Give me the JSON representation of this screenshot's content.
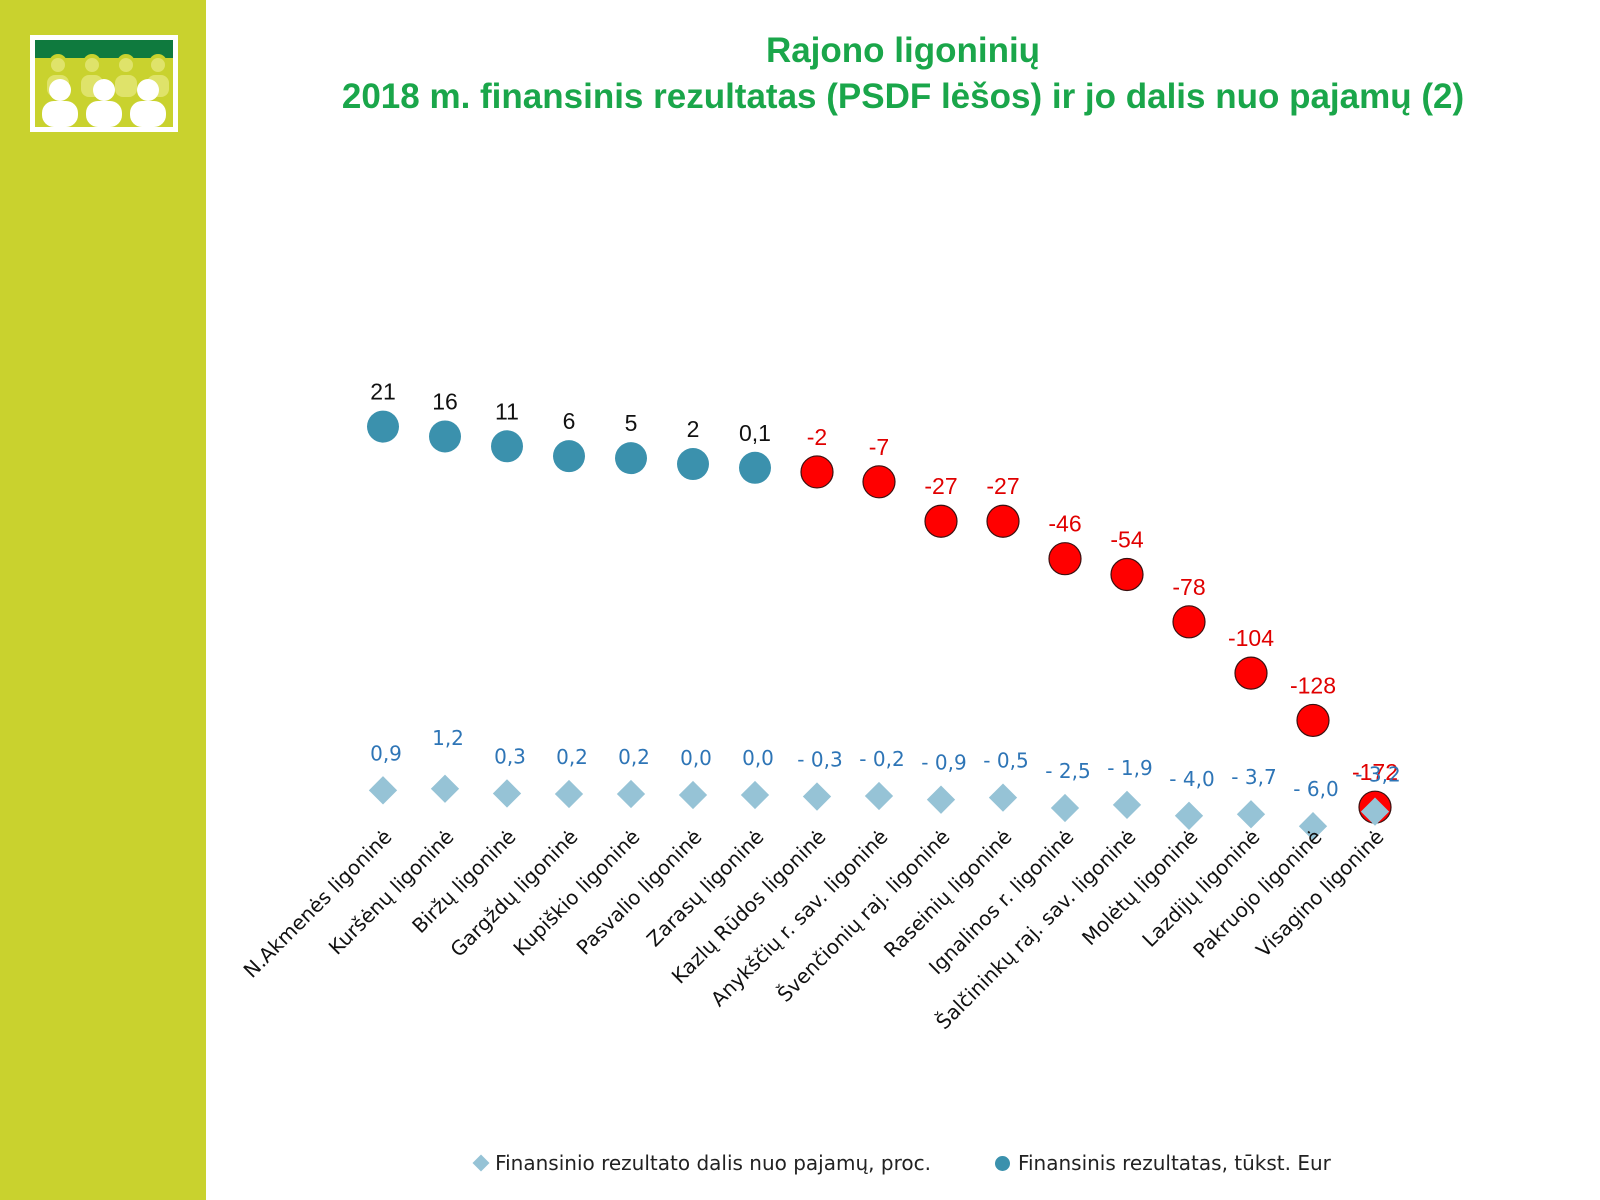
{
  "title": {
    "line1": "Rajono ligoninių",
    "line2": "2018 m. finansinis rezultatas (PSDF lėšos) ir jo dalis nuo pajamų (2)"
  },
  "colors": {
    "sidebar": "#c9d22e",
    "title": "#1aa64a",
    "positive_circle": "#3b91ad",
    "negative_circle": "#ff0000",
    "diamond": "#96c3d6",
    "percent_label": "#2e75b6",
    "negative_label": "#e00000"
  },
  "legend": {
    "items": [
      {
        "label": "Finansinio rezultato dalis nuo pajamų, proc.",
        "icon": "diamond-icon"
      },
      {
        "label": "Finansinis rezultatas, tūkst. Eur",
        "icon": "circle-icon"
      }
    ]
  },
  "chart_data": {
    "type": "scatter",
    "categories": [
      "N.Akmenės ligoninė",
      "Kuršėnų ligoninė",
      "Biržų ligoninė",
      "Gargždų ligoninė",
      "Kupiškio ligoninė",
      "Pasvalio ligoninė",
      "Zarasų ligoninė",
      "Kazlų Rūdos ligoninė",
      "Anykščių r. sav. ligoninė",
      "Švenčionių raj. ligoninė",
      "Raseinių ligoninė",
      "Ignalinos r. ligoninė",
      "Šalčininkų raj. sav. ligoninė",
      "Molėtų ligoninė",
      "Lazdijų ligoninė",
      "Pakruojo ligoninė",
      "Visagino ligoninė"
    ],
    "series": [
      {
        "name": "Finansinis rezultatas, tūkst. Eur",
        "marker": "circle",
        "values": [
          21,
          16,
          11,
          6,
          5,
          2,
          0.1,
          -2,
          -7,
          -27,
          -27,
          -46,
          -54,
          -78,
          -104,
          -128,
          -172
        ],
        "labels": [
          "21",
          "16",
          "11",
          "6",
          "5",
          "2",
          "0,1",
          "-2",
          "-7",
          "-27",
          "-27",
          "-46",
          "-54",
          "-78",
          "-104",
          "-128",
          "-172"
        ]
      },
      {
        "name": "Finansinio rezultato dalis nuo pajamų, proc.",
        "marker": "diamond",
        "values": [
          0.9,
          1.2,
          0.3,
          0.2,
          0.2,
          0.0,
          0.0,
          -0.3,
          -0.2,
          -0.9,
          -0.5,
          -2.5,
          -1.9,
          -4.0,
          -3.7,
          -6.0,
          -3.2
        ],
        "labels": [
          "0,9",
          "1,2",
          "0,3",
          "0,2",
          "0,2",
          "0,0",
          "0,0",
          "- 0,3",
          "- 0,2",
          "- 0,9",
          "- 0,5",
          "- 2,5",
          "- 1,9",
          "- 4,0",
          "- 3,7",
          "- 6,0",
          "- 3,2"
        ]
      }
    ],
    "grid": false,
    "legend_position": "bottom"
  }
}
